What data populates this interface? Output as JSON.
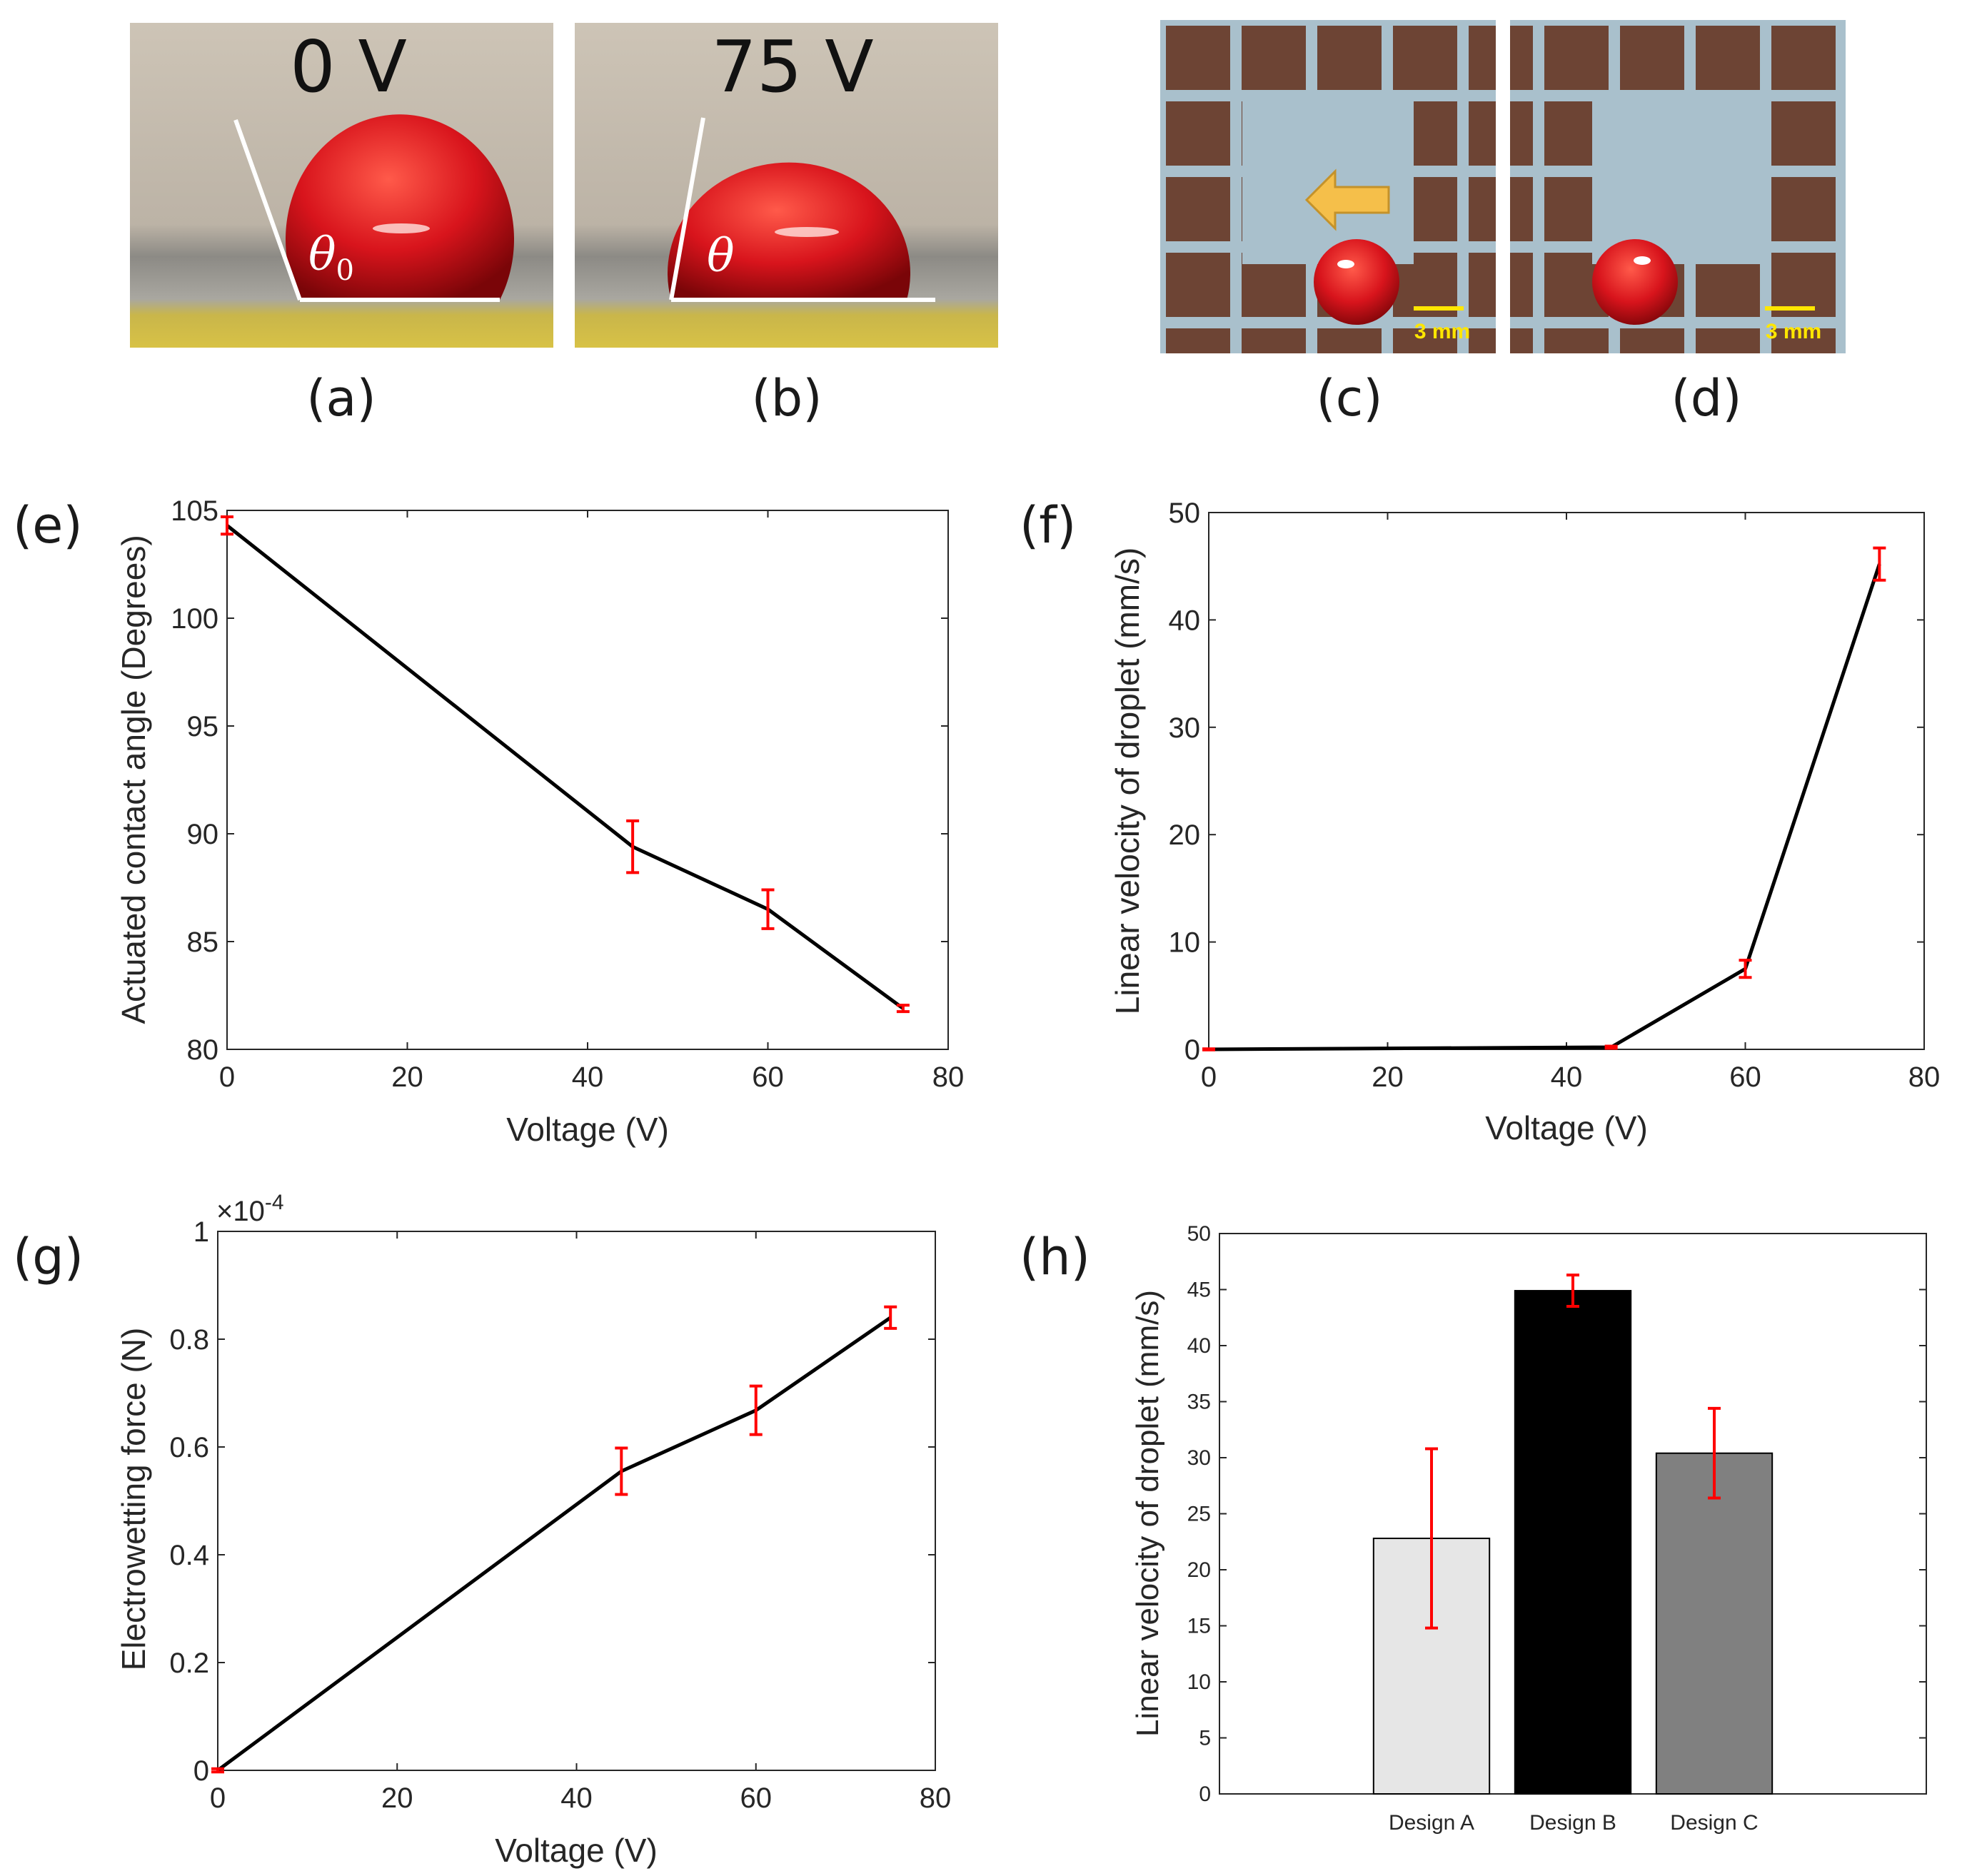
{
  "photos": {
    "a": {
      "label": "(a)",
      "voltage": "0 V",
      "angle_symbol": "θ",
      "angle_subscript": "0"
    },
    "b": {
      "label": "(b)",
      "voltage": "75 V",
      "angle_symbol": "θ"
    },
    "c": {
      "label": "(c)",
      "scale_bar": "3 mm"
    },
    "d": {
      "label": "(d)",
      "scale_bar": "3 mm"
    }
  },
  "chart_data": [
    {
      "panel": "(e)",
      "type": "line",
      "xlabel": "Voltage (V)",
      "ylabel": "Actuated contact angle (Degrees)",
      "xlim": [
        0,
        80
      ],
      "ylim": [
        80,
        105
      ],
      "xticks": [
        "0",
        "20",
        "40",
        "60",
        "80"
      ],
      "yticks": [
        "80",
        "85",
        "90",
        "95",
        "100",
        "105"
      ],
      "x": [
        0,
        45,
        60,
        75
      ],
      "y": [
        104.3,
        89.4,
        86.5,
        81.9
      ],
      "err": [
        0.4,
        1.2,
        0.9,
        0.15
      ]
    },
    {
      "panel": "(f)",
      "type": "line",
      "xlabel": "Voltage (V)",
      "ylabel": "Linear velocity of droplet (mm/s)",
      "xlim": [
        0,
        80
      ],
      "ylim": [
        0,
        50
      ],
      "xticks": [
        "0",
        "20",
        "40",
        "60",
        "80"
      ],
      "yticks": [
        "0",
        "10",
        "20",
        "30",
        "40",
        "50"
      ],
      "x": [
        0,
        45,
        60,
        75
      ],
      "y": [
        0,
        0.2,
        7.5,
        45.2
      ],
      "err": [
        0.05,
        0.1,
        0.8,
        1.5
      ]
    },
    {
      "panel": "(g)",
      "type": "line",
      "xlabel": "Voltage (V)",
      "ylabel": "Electrowetting force (N)",
      "exponent_base": "×10",
      "exponent_power": "-4",
      "xlim": [
        0,
        80
      ],
      "ylim": [
        0,
        1
      ],
      "xticks": [
        "0",
        "20",
        "40",
        "60",
        "80"
      ],
      "yticks": [
        "0",
        "0.2",
        "0.4",
        "0.6",
        "0.8",
        "1"
      ],
      "x": [
        0,
        45,
        60,
        75
      ],
      "y": [
        0,
        0.555,
        0.668,
        0.84
      ],
      "err": [
        0.003,
        0.043,
        0.045,
        0.02
      ]
    },
    {
      "panel": "(h)",
      "type": "bar",
      "ylabel": "Linear velocity of droplet (mm/s)",
      "ylim": [
        0,
        50
      ],
      "yticks": [
        "0",
        "5",
        "10",
        "15",
        "20",
        "25",
        "30",
        "35",
        "40",
        "45",
        "50"
      ],
      "categories": [
        "Design A",
        "Design B",
        "Design C"
      ],
      "values": [
        22.8,
        44.9,
        30.4
      ],
      "err": [
        8.0,
        1.4,
        4.0
      ],
      "colors": [
        "#e6e6e6",
        "#000000",
        "#808080"
      ]
    }
  ]
}
